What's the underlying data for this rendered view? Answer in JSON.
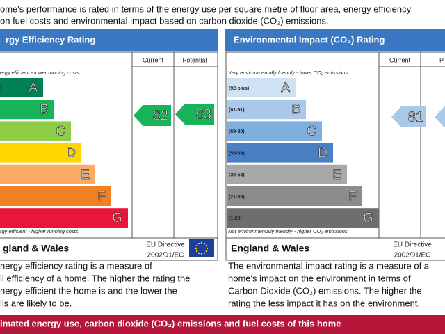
{
  "intro": {
    "lines": [
      "ome's performance is rated in terms of the energy use per square metre of floor area, energy efficiency",
      "on fuel costs and environmental impact based on carbon dioxide (CO₂) emissions."
    ]
  },
  "energy": {
    "title": "rgy Efficiency Rating",
    "current_header": "Current",
    "potential_header": "Potential",
    "top_note": "ergy efficient - lower running costs",
    "bottom_note": "rgy efficient - higher running costs",
    "bands": [
      {
        "letter": "A",
        "range": "s)",
        "color": "#008054"
      },
      {
        "letter": "B",
        "color": "#19b459"
      },
      {
        "letter": "C",
        "color": "#8dce46"
      },
      {
        "letter": "D",
        "color": "#ffd500"
      },
      {
        "letter": "E",
        "color": "#fcaa65"
      },
      {
        "letter": "F",
        "color": "#ef8023"
      },
      {
        "letter": "G",
        "color": "#e9153b"
      }
    ],
    "current": 82,
    "current_color": "#19b459",
    "potential": 83,
    "potential_color": "#19b459",
    "region": "gland & Wales",
    "directive": [
      "EU Directive",
      "2002/91/EC"
    ],
    "description": [
      "nergy efficiency rating is a measure of",
      "ll efficiency of a home. The higher the rating the",
      "nergy efficient the home is and the lower the",
      "lls are likely to be."
    ]
  },
  "environment": {
    "title": "Environmental Impact (CO₂) Rating",
    "current_header": "Current",
    "potential_header": "P",
    "top_note": "Very environmentally friendly - lower CO₂ emissions",
    "bottom_note": "Not environmentally friendly - higher CO₂ emissions",
    "bands": [
      {
        "letter": "A",
        "range": "(92-plus)",
        "color": "#cfe2f3"
      },
      {
        "letter": "B",
        "range": "(81-91)",
        "color": "#a9c8ea"
      },
      {
        "letter": "C",
        "range": "(69-80)",
        "color": "#7eafdf"
      },
      {
        "letter": "D",
        "range": "(55-68)",
        "color": "#4a7fc4"
      },
      {
        "letter": "E",
        "range": "(39-54)",
        "color": "#a8a8a8"
      },
      {
        "letter": "F",
        "range": "(21-38)",
        "color": "#8c8c8c"
      },
      {
        "letter": "G",
        "range": "(1-20)",
        "color": "#6e6e6e"
      }
    ],
    "current": 81,
    "current_color": "#a9c8ea",
    "potential_color": "#a9c8ea",
    "region": "England & Wales",
    "directive": [
      "EU Directive",
      "2002/91/EC"
    ],
    "description": [
      "The environmental impact rating is a measure of a",
      "home's impact on the environment in terms of",
      "Carbon Dioxide (CO₂) emissions. The higher the",
      "rating the less impact it has on the environment."
    ]
  },
  "footer_bar": "imated energy use, carbon dioxide (CO₂) emissions and fuel costs of this home"
}
